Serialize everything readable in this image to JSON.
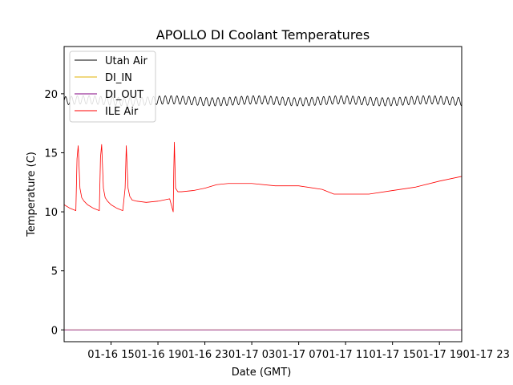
{
  "chart_data": {
    "type": "line",
    "title": "APOLLO DI Coolant Temperatures",
    "xlabel": "Date (GMT)",
    "ylabel": "Temperature (C)",
    "xlim": [
      0,
      33.9
    ],
    "ylim": [
      -1,
      24
    ],
    "x_unit": "hours since 01-16 11:00 GMT",
    "xticks": [
      {
        "x": 4,
        "label": "01-16 15"
      },
      {
        "x": 8,
        "label": "01-16 19"
      },
      {
        "x": 12,
        "label": "01-16 23"
      },
      {
        "x": 16,
        "label": "01-17 03"
      },
      {
        "x": 20,
        "label": "01-17 07"
      },
      {
        "x": 24,
        "label": "01-17 11"
      },
      {
        "x": 28,
        "label": "01-17 15"
      },
      {
        "x": 32,
        "label": "01-17 19"
      },
      {
        "x": 36,
        "label": "01-17 23"
      }
    ],
    "yticks": [
      {
        "y": 0,
        "label": "0"
      },
      {
        "y": 5,
        "label": "5"
      },
      {
        "y": 10,
        "label": "10"
      },
      {
        "y": 15,
        "label": "15"
      },
      {
        "y": 20,
        "label": "20"
      }
    ],
    "legend_position": "upper-left",
    "series": [
      {
        "name": "Utah Air",
        "color": "#000000",
        "style": "oscillating",
        "base": 19.4,
        "amplitude": 0.35,
        "period_hours": 0.5
      },
      {
        "name": "DI_IN",
        "color": "#e0b000",
        "x": [
          0,
          33.9
        ],
        "y": [
          0,
          0
        ]
      },
      {
        "name": "DI_OUT",
        "color": "#800080",
        "x": [
          0,
          33.9
        ],
        "y": [
          0,
          0
        ]
      },
      {
        "name": "ILE Air",
        "color": "#ff0000",
        "x": [
          0,
          0.5,
          1.0,
          1.1,
          1.2,
          1.35,
          1.5,
          1.7,
          2.0,
          2.5,
          3.0,
          3.1,
          3.2,
          3.35,
          3.5,
          3.7,
          4.0,
          4.5,
          5.0,
          5.2,
          5.3,
          5.45,
          5.6,
          5.8,
          6.2,
          7.0,
          8.0,
          9.0,
          9.3,
          9.35,
          9.4,
          9.5,
          9.7,
          10.0,
          11.0,
          12.0,
          13.0,
          14.0,
          16.0,
          18.0,
          20.0,
          22.0,
          23.0,
          24.0,
          26.0,
          28.0,
          30.0,
          32.0,
          33.9
        ],
        "y": [
          10.6,
          10.3,
          10.1,
          14.5,
          15.6,
          12.0,
          11.2,
          10.9,
          10.6,
          10.3,
          10.1,
          14.6,
          15.7,
          12.0,
          11.2,
          10.9,
          10.6,
          10.3,
          10.1,
          12.0,
          15.6,
          12.0,
          11.3,
          11.0,
          10.9,
          10.8,
          10.9,
          11.1,
          10.0,
          13.5,
          15.9,
          12.0,
          11.7,
          11.7,
          11.8,
          12.0,
          12.3,
          12.4,
          12.4,
          12.2,
          12.2,
          11.9,
          11.5,
          11.5,
          11.5,
          11.8,
          12.1,
          12.6,
          13.0
        ]
      }
    ]
  }
}
